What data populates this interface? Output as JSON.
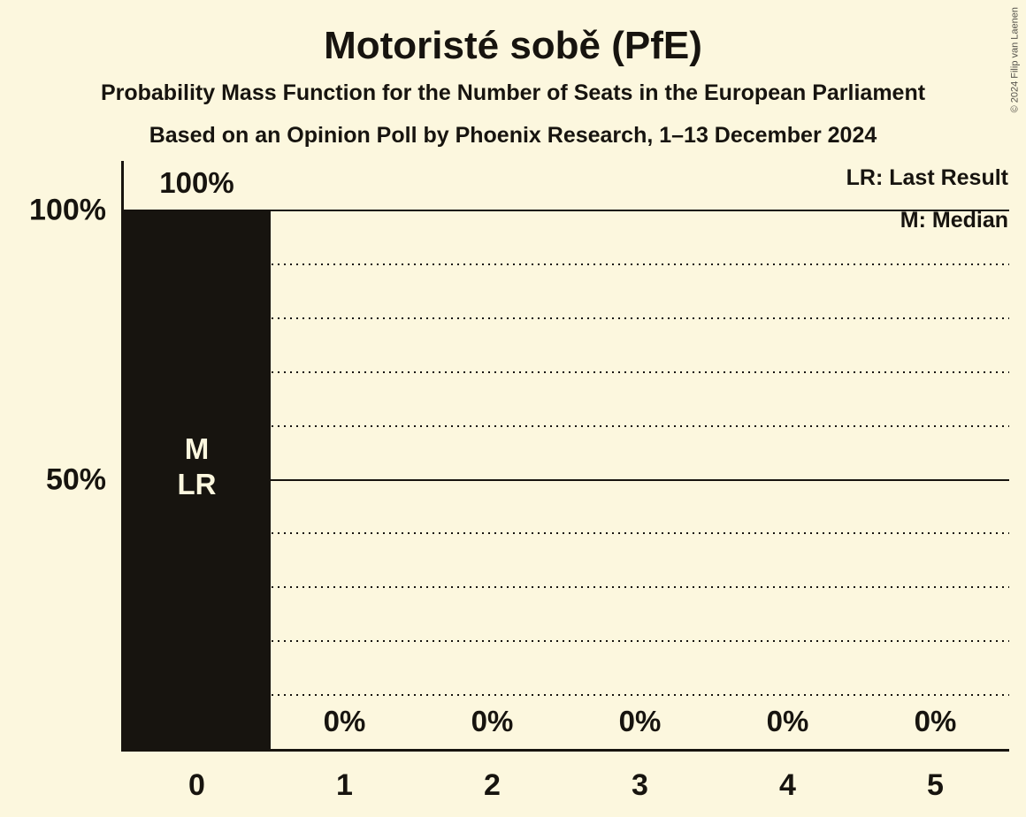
{
  "header": {
    "title": "Motoristé sobě (PfE)",
    "subtitle": "Probability Mass Function for the Number of Seats in the European Parliament",
    "poll_line": "Based on an Opinion Poll by Phoenix Research, 1–13 December 2024"
  },
  "legend": {
    "last_result": "LR: Last Result",
    "median": "M: Median"
  },
  "copyright": "© 2024 Filip van Laenen",
  "colors": {
    "background": "#FCF7DE",
    "ink": "#17140F",
    "bar": "#17140F",
    "bar_text": "#FCF7DE",
    "copyright_text": "#55524B"
  },
  "chart_data": {
    "type": "bar",
    "title": "Motoristé sobě (PfE)",
    "subtitle": "Probability Mass Function for the Number of Seats in the European Parliament",
    "source_line": "Based on an Opinion Poll by Phoenix Research, 1–13 December 2024",
    "categories": [
      "0",
      "1",
      "2",
      "3",
      "4",
      "5"
    ],
    "values": [
      100,
      0,
      0,
      0,
      0,
      0
    ],
    "value_labels": [
      "100%",
      "0%",
      "0%",
      "0%",
      "0%",
      "0%"
    ],
    "bar_annotations": {
      "0": [
        "M",
        "LR"
      ]
    },
    "xlabel": "",
    "ylabel": "",
    "ylim": [
      0,
      100
    ],
    "yticks": [
      {
        "value": 100,
        "label": "100%"
      },
      {
        "value": 50,
        "label": "50%"
      }
    ],
    "gridlines_solid": [
      100,
      50
    ],
    "gridlines_dotted": [
      90,
      80,
      70,
      60,
      40,
      30,
      20,
      10
    ],
    "grid": "on",
    "legend_position": "top-right",
    "legend_entries": [
      "LR: Last Result",
      "M: Median"
    ]
  }
}
